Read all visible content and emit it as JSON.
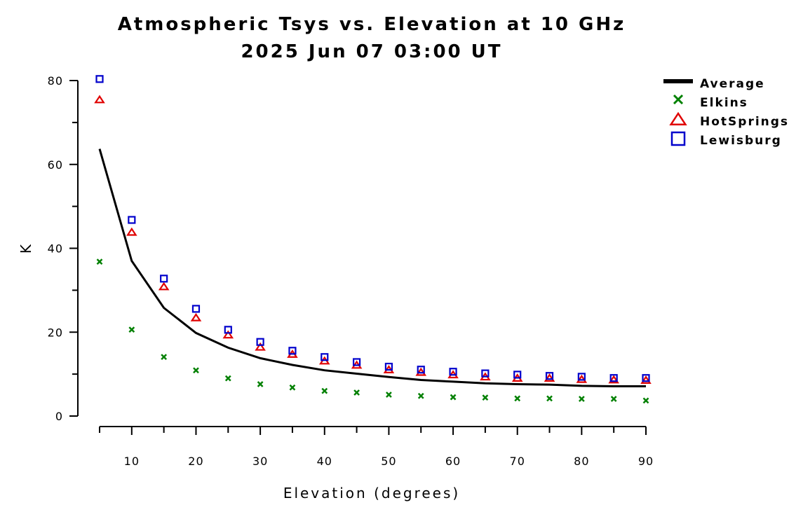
{
  "chart_data": {
    "type": "scatter",
    "title": "Atmospheric Tsys vs. Elevation at 10 GHz",
    "subtitle": "2025 Jun 07 03:00 UT",
    "xlabel": "Elevation (degrees)",
    "ylabel": "K",
    "xlim": [
      5,
      90
    ],
    "ylim": [
      0,
      80
    ],
    "x_ticks": [
      "10",
      "20",
      "30",
      "40",
      "50",
      "60",
      "70",
      "80",
      "90"
    ],
    "y_ticks": [
      "0",
      "20",
      "40",
      "60",
      "80"
    ],
    "grid": false,
    "legend_position": "top-right",
    "x": [
      5,
      10,
      15,
      20,
      25,
      30,
      35,
      40,
      45,
      50,
      55,
      60,
      65,
      70,
      75,
      80,
      85,
      90
    ],
    "series": [
      {
        "name": "Average",
        "kind": "line",
        "color": "#000000",
        "values": [
          63.7,
          37.0,
          25.8,
          19.8,
          16.3,
          13.8,
          12.2,
          10.9,
          10.1,
          9.3,
          8.6,
          8.2,
          7.8,
          7.6,
          7.5,
          7.2,
          7.1,
          7.1
        ]
      },
      {
        "name": "Elkins",
        "kind": "marker",
        "marker": "x",
        "color": "#008000",
        "values": [
          36.8,
          20.6,
          14.1,
          10.9,
          9.0,
          7.6,
          6.8,
          6.0,
          5.6,
          5.1,
          4.8,
          4.5,
          4.4,
          4.2,
          4.2,
          4.1,
          4.1,
          3.7
        ]
      },
      {
        "name": "HotSprings",
        "kind": "marker",
        "marker": "triangle",
        "color": "#e00000",
        "values": [
          75.4,
          43.8,
          30.8,
          23.4,
          19.3,
          16.4,
          14.7,
          13.1,
          12.1,
          11.0,
          10.4,
          9.8,
          9.3,
          9.0,
          9.0,
          8.7,
          8.6,
          8.5
        ]
      },
      {
        "name": "Lewisburg",
        "kind": "marker",
        "marker": "square",
        "color": "#0000cc",
        "values": [
          80.2,
          46.6,
          32.6,
          25.4,
          20.4,
          17.5,
          15.4,
          13.9,
          12.7,
          11.6,
          10.9,
          10.4,
          10.0,
          9.7,
          9.4,
          9.2,
          8.9,
          8.9
        ]
      }
    ]
  }
}
